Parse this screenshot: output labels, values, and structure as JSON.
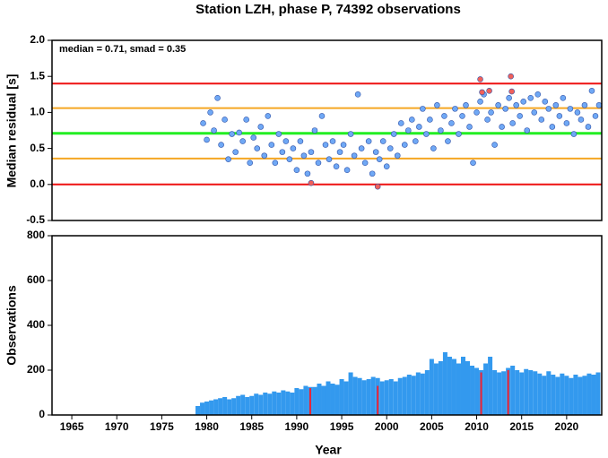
{
  "chart_data": [
    {
      "type": "scatter",
      "title": "Station LZH, phase P, 74392 observations",
      "annotation": "median = 0.71, smad = 0.35",
      "ylabel": "Median residual [s]",
      "xlim": [
        1962.8,
        2023.9
      ],
      "ylim": [
        -0.5,
        2.0
      ],
      "yticks": [
        {
          "value": -0.5,
          "label": "-0.5"
        },
        {
          "value": 0,
          "label": "0.0"
        },
        {
          "value": 0.5,
          "label": "0.5"
        },
        {
          "value": 1,
          "label": "1.0"
        },
        {
          "value": 1.5,
          "label": "1.5"
        },
        {
          "value": 2,
          "label": "2.0"
        }
      ],
      "reference_lines": [
        {
          "value": 0,
          "color": "#ee1111"
        },
        {
          "value": 1.4,
          "color": "#ee1111"
        },
        {
          "value": 0.36,
          "color": "#f5a623"
        },
        {
          "value": 1.06,
          "color": "#f5a623"
        },
        {
          "value": 0.71,
          "color": "#22ee22"
        }
      ],
      "series": [
        {
          "color": "#6fa8f5",
          "x": [
            1979.6,
            1980.0,
            1980.4,
            1980.8,
            1981.2,
            1981.6,
            1982.0,
            1982.4,
            1982.8,
            1983.2,
            1983.6,
            1984.0,
            1984.4,
            1984.8,
            1985.2,
            1985.6,
            1986.0,
            1986.4,
            1986.8,
            1987.2,
            1987.6,
            1988.0,
            1988.4,
            1988.8,
            1989.2,
            1989.6,
            1990.0,
            1990.4,
            1990.8,
            1991.2,
            1991.6,
            1992.0,
            1992.4,
            1992.8,
            1993.2,
            1993.6,
            1994.0,
            1994.4,
            1994.8,
            1995.2,
            1995.6,
            1996.0,
            1996.4,
            1996.8,
            1997.2,
            1997.6,
            1998.0,
            1998.4,
            1998.8,
            1999.2,
            1999.6,
            2000.0,
            2000.4,
            2000.8,
            2001.2,
            2001.6,
            2002.0,
            2002.4,
            2002.8,
            2003.2,
            2003.6,
            2004.0,
            2004.4,
            2004.8,
            2005.2,
            2005.6,
            2006.0,
            2006.4,
            2006.8,
            2007.2,
            2007.6,
            2008.0,
            2008.4,
            2008.8,
            2009.2,
            2009.6,
            2010.0,
            2010.4,
            2010.8,
            2011.2,
            2011.6,
            2012.0,
            2012.4,
            2012.8,
            2013.2,
            2013.6,
            2014.0,
            2014.4,
            2014.8,
            2015.2,
            2015.6,
            2016.0,
            2016.4,
            2016.8,
            2017.2,
            2017.6,
            2018.0,
            2018.4,
            2018.8,
            2019.2,
            2019.6,
            2020.0,
            2020.4,
            2020.8,
            2021.2,
            2021.6,
            2022.0,
            2022.4,
            2022.8,
            2023.2,
            2023.6
          ],
          "values": [
            0.85,
            0.62,
            1.0,
            0.75,
            1.2,
            0.55,
            0.9,
            0.35,
            0.7,
            0.45,
            0.72,
            0.6,
            0.9,
            0.3,
            0.65,
            0.5,
            0.8,
            0.4,
            0.95,
            0.55,
            0.3,
            0.7,
            0.45,
            0.6,
            0.35,
            0.5,
            0.2,
            0.6,
            0.4,
            0.15,
            0.45,
            0.75,
            0.3,
            0.95,
            0.55,
            0.35,
            0.6,
            0.25,
            0.45,
            0.55,
            0.2,
            0.7,
            0.4,
            1.25,
            0.5,
            0.3,
            0.6,
            0.15,
            0.45,
            0.35,
            0.6,
            0.25,
            0.5,
            0.7,
            0.4,
            0.85,
            0.55,
            0.75,
            0.9,
            0.6,
            0.8,
            1.05,
            0.7,
            0.9,
            0.5,
            1.1,
            0.75,
            0.95,
            0.6,
            0.85,
            1.05,
            0.7,
            0.95,
            1.1,
            0.8,
            0.3,
            1.0,
            1.15,
            1.25,
            0.9,
            1.0,
            0.55,
            1.1,
            0.8,
            1.05,
            1.2,
            0.85,
            1.1,
            0.95,
            1.15,
            0.75,
            1.2,
            1.0,
            1.25,
            0.9,
            1.15,
            1.05,
            0.8,
            1.1,
            0.95,
            1.2,
            0.85,
            1.05,
            0.7,
            1.0,
            0.9,
            1.1,
            0.8,
            1.3,
            0.95,
            1.1
          ]
        },
        {
          "color": "#f0605a",
          "x": [
            1991.6,
            1999.0,
            2010.4,
            2010.6,
            2011.4,
            2013.8,
            2013.9
          ],
          "values": [
            0.02,
            -0.03,
            1.46,
            1.28,
            1.3,
            1.5,
            1.29
          ]
        }
      ]
    },
    {
      "type": "bar",
      "ylabel": "Observations",
      "xlabel": "Year",
      "xlim": [
        1962.8,
        2023.9
      ],
      "ylim": [
        0,
        800
      ],
      "yticks": [
        0,
        200,
        400,
        600,
        800
      ],
      "xticks": [
        1965,
        1970,
        1975,
        1980,
        1985,
        1990,
        1995,
        2000,
        2005,
        2010,
        2015,
        2020
      ],
      "series": [
        {
          "color": "#3399ee",
          "x": [
            1979.0,
            1979.5,
            1980.0,
            1980.5,
            1981.0,
            1981.5,
            1982.0,
            1982.5,
            1983.0,
            1983.5,
            1984.0,
            1984.5,
            1985.0,
            1985.5,
            1986.0,
            1986.5,
            1987.0,
            1987.5,
            1988.0,
            1988.5,
            1989.0,
            1989.5,
            1990.0,
            1990.5,
            1991.0,
            1991.5,
            1992.0,
            1992.5,
            1993.0,
            1993.5,
            1994.0,
            1994.5,
            1995.0,
            1995.5,
            1996.0,
            1996.5,
            1997.0,
            1997.5,
            1998.0,
            1998.5,
            1999.0,
            1999.5,
            2000.0,
            2000.5,
            2001.0,
            2001.5,
            2002.0,
            2002.5,
            2003.0,
            2003.5,
            2004.0,
            2004.5,
            2005.0,
            2005.5,
            2006.0,
            2006.5,
            2007.0,
            2007.5,
            2008.0,
            2008.5,
            2009.0,
            2009.5,
            2010.0,
            2010.5,
            2011.0,
            2011.5,
            2012.0,
            2012.5,
            2013.0,
            2013.5,
            2014.0,
            2014.5,
            2015.0,
            2015.5,
            2016.0,
            2016.5,
            2017.0,
            2017.5,
            2018.0,
            2018.5,
            2019.0,
            2019.5,
            2020.0,
            2020.5,
            2021.0,
            2021.5,
            2022.0,
            2022.5,
            2023.0,
            2023.5
          ],
          "values": [
            40,
            55,
            60,
            65,
            70,
            75,
            80,
            70,
            75,
            85,
            90,
            80,
            85,
            95,
            90,
            100,
            95,
            105,
            100,
            110,
            105,
            100,
            120,
            115,
            130,
            125,
            125,
            140,
            130,
            150,
            140,
            135,
            160,
            150,
            190,
            170,
            165,
            155,
            160,
            170,
            165,
            150,
            155,
            160,
            150,
            165,
            170,
            180,
            175,
            190,
            185,
            200,
            250,
            230,
            240,
            280,
            260,
            250,
            230,
            260,
            240,
            220,
            210,
            200,
            230,
            260,
            200,
            190,
            195,
            210,
            220,
            200,
            190,
            205,
            200,
            195,
            185,
            175,
            195,
            180,
            170,
            185,
            175,
            165,
            180,
            170,
            175,
            185,
            180,
            190
          ]
        },
        {
          "color": "#ee2233",
          "x": [
            1991.5,
            1999.0,
            2010.5,
            2013.5
          ],
          "values": [
            120,
            130,
            190,
            200
          ]
        }
      ]
    }
  ]
}
